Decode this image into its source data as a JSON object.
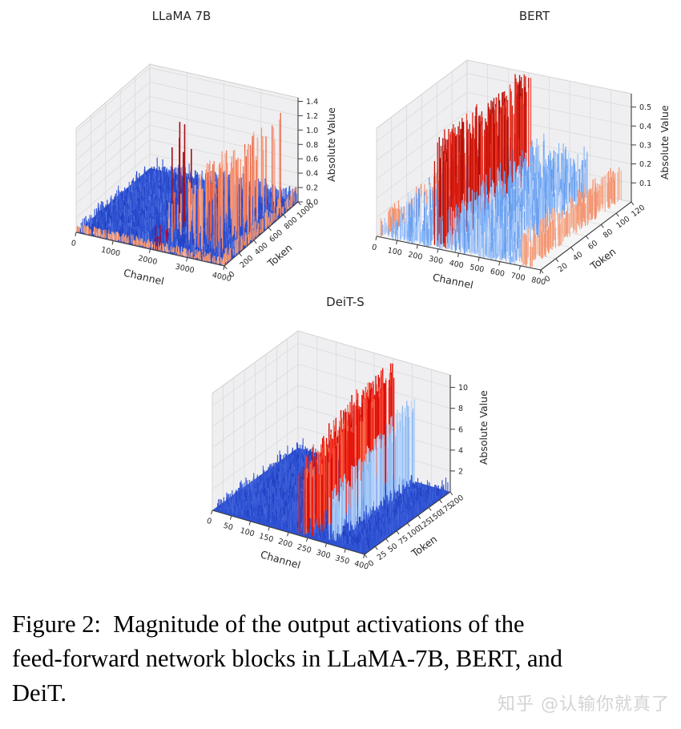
{
  "caption": {
    "lines": [
      "Figure 2:  Magnitude of the output activations of the",
      "feed-forward network blocks in LLaMA-7B, BERT, and",
      "DeiT."
    ]
  },
  "watermark": {
    "text": "知乎 @认输你就真了",
    "color": "#d3d3d3"
  },
  "colors": {
    "pane_wall": "#efeff1",
    "pane_floor": "#f5f5f6",
    "grid": "#d8d8d8",
    "axis": "#3c3c3c",
    "tick_text": "#262626"
  },
  "chart_data": [
    {
      "type": "3d-spike-surface",
      "title": "LLaMA 7B",
      "xlabel": "Channel",
      "ylabel": "Token",
      "zlabel": "Absolute Value",
      "x_ticks": [
        "0",
        "1000",
        "2000",
        "3000",
        "4000"
      ],
      "y_ticks": [
        "0",
        "200",
        "400",
        "600",
        "800",
        "1000"
      ],
      "z_ticks": [
        "0.0",
        "0.2",
        "0.4",
        "0.6",
        "0.8",
        "1.0",
        "1.2",
        "1.4"
      ],
      "x_range": [
        0,
        4000
      ],
      "y_range": [
        0,
        1000
      ],
      "z_range": [
        0,
        1.45
      ],
      "base_fill": "#2e52d3",
      "summary": "Dense low blue activations (<0.15) over all ~4000 channels and 1000 tokens; sparse salmon/red outlier spikes up to ~1.4 concentrated in channels ~2000-4000.",
      "features": [
        {
          "label": "blue-activation-sea-noise",
          "colors": [
            "#2343c8",
            "#3a5cd8",
            "#2c50cf",
            "#4668dd",
            "#1f3fc0",
            "#5577e0"
          ],
          "count": 2400,
          "c": [
            0.01,
            0.99
          ],
          "t": [
            0.03,
            0.97
          ],
          "h": [
            0.01,
            0.16
          ],
          "width": 1.2
        },
        {
          "label": "blue-medium-spikes",
          "colors": [
            "#3a5cd8",
            "#2c50cf"
          ],
          "count": 260,
          "c": [
            0.05,
            0.85
          ],
          "t": [
            0.1,
            0.95
          ],
          "h": [
            0.12,
            0.34
          ],
          "width": 1.1
        },
        {
          "label": "front-edge-salmon-stripe",
          "colors": [
            "#f09a78",
            "#ee8a62",
            "#f6b49b"
          ],
          "count": 280,
          "c": [
            0,
            1
          ],
          "t": [
            0,
            0.03
          ],
          "h": [
            0.02,
            0.12
          ],
          "width": 1.2
        },
        {
          "label": "right-edge-salmon-stripe",
          "colors": [
            "#f09a78",
            "#ee8a62"
          ],
          "count": 130,
          "c": [
            0.97,
            1
          ],
          "t": [
            0,
            1
          ],
          "h": [
            0.03,
            0.22
          ],
          "width": 1.2
        },
        {
          "label": "back-edge-blue-stripe",
          "colors": [
            "#3a5cd8",
            "#5577e0"
          ],
          "count": 140,
          "c": [
            0.45,
            1
          ],
          "t": [
            0.96,
            1
          ],
          "h": [
            0.05,
            0.22
          ],
          "width": 1.2
        },
        {
          "label": "outlier-salmon-spikes",
          "colors": [
            "#f4987a",
            "#ef7c5a",
            "#e96444",
            "#f5ad92",
            "#fa8e6a"
          ],
          "count": 120,
          "c": [
            0.52,
            0.99
          ],
          "t": [
            0.06,
            0.94
          ],
          "h": [
            0.18,
            1.42
          ],
          "ramp": "c",
          "width": 1.3
        },
        {
          "label": "outlier-dark-red-spikes",
          "colors": [
            "#a50f15",
            "#b40426",
            "#c00a0a"
          ],
          "count": 6,
          "c": [
            0.5,
            0.55
          ],
          "t": [
            0.25,
            0.6
          ],
          "h": [
            0.8,
            1.44
          ],
          "width": 1.6
        },
        {
          "label": "front-dark-red-spikes",
          "colors": [
            "#b40426"
          ],
          "count": 8,
          "c": [
            0.48,
            0.62
          ],
          "t": [
            0,
            0.08
          ],
          "h": [
            0.1,
            0.4
          ],
          "width": 1.4
        }
      ]
    },
    {
      "type": "3d-spike-surface",
      "title": "BERT",
      "xlabel": "Channel",
      "ylabel": "Token",
      "zlabel": "Absolute Value",
      "x_ticks": [
        "0",
        "100",
        "200",
        "300",
        "400",
        "500",
        "600",
        "700",
        "800"
      ],
      "y_ticks": [
        "0",
        "20",
        "40",
        "60",
        "80",
        "100",
        "120"
      ],
      "z_ticks": [
        "0.1",
        "0.2",
        "0.3",
        "0.4",
        "0.5"
      ],
      "x_range": [
        0,
        800
      ],
      "y_range": [
        0,
        120
      ],
      "z_range": [
        0,
        0.57
      ],
      "base_fill": null,
      "summary": "Light-blue token-spanning ridges (~0.05-0.25) over channels ~100-600; a tall red outlier wall (~0.45-0.58) near channel ~300; salmon walls (~0.1-0.17) near channels ~0-50 and ~700-750.",
      "features": [
        {
          "label": "light-blue-ridges",
          "colors": [
            "#7aadf6",
            "#9cc2fa",
            "#5e94ea",
            "#b9d4fb",
            "#d7dfef"
          ],
          "count": 1100,
          "c": [
            0.1,
            0.78
          ],
          "t": [
            0,
            1
          ],
          "h": [
            0.04,
            0.21
          ],
          "width": 1.2
        },
        {
          "label": "blue-taller-ridges",
          "colors": [
            "#6aa0f0",
            "#8ab8f8"
          ],
          "count": 240,
          "c": [
            0.42,
            0.76
          ],
          "t": [
            0,
            1
          ],
          "h": [
            0.14,
            0.28
          ],
          "width": 1.2
        },
        {
          "label": "red-outlier-wall",
          "colors": [
            "#df1f14",
            "#c51408",
            "#f04433",
            "#b00d06"
          ],
          "count": 210,
          "c": [
            0.33,
            0.42
          ],
          "t": [
            0.02,
            1
          ],
          "h": [
            0.42,
            0.585
          ],
          "width": 1.3
        },
        {
          "label": "red-wall-lower-fill",
          "colors": [
            "#d41a0f",
            "#e9372a"
          ],
          "count": 90,
          "c": [
            0.34,
            0.41
          ],
          "t": [
            0.1,
            0.9
          ],
          "h": [
            0.15,
            0.42
          ],
          "width": 1.2
        },
        {
          "label": "salmon-wall-right",
          "colors": [
            "#f5a081",
            "#f2906c",
            "#f7b294"
          ],
          "count": 170,
          "c": [
            0.86,
            0.94
          ],
          "t": [
            0,
            1
          ],
          "h": [
            0.1,
            0.17
          ],
          "width": 1.3
        },
        {
          "label": "salmon-ridge-left",
          "colors": [
            "#f5a081",
            "#f2906c"
          ],
          "count": 90,
          "c": [
            0.02,
            0.08
          ],
          "t": [
            0,
            1
          ],
          "h": [
            0.07,
            0.15
          ],
          "width": 1.2
        },
        {
          "label": "front-blue-noise",
          "colors": [
            "#7aadf6",
            "#9cc2fa"
          ],
          "count": 260,
          "c": [
            0.02,
            0.85
          ],
          "t": [
            0,
            0.12
          ],
          "h": [
            0.02,
            0.1
          ],
          "width": 1.1
        }
      ]
    },
    {
      "type": "3d-spike-surface",
      "title": "DeiT-S",
      "xlabel": "Channel",
      "ylabel": "Token",
      "zlabel": "Absolute Value",
      "x_ticks": [
        "0",
        "50",
        "100",
        "150",
        "200",
        "250",
        "300",
        "350",
        "400"
      ],
      "y_ticks": [
        "0",
        "25",
        "50",
        "75",
        "100",
        "125",
        "150",
        "175",
        "200"
      ],
      "z_ticks": [
        "2",
        "4",
        "6",
        "8",
        "10"
      ],
      "x_range": [
        0,
        400
      ],
      "y_range": [
        0,
        200
      ],
      "z_range": [
        0,
        11.2
      ],
      "base_fill": "#2e52d3",
      "summary": "Low blue activations (<1) across ~400 channels and ~200 tokens; a tall red outlier wall (~5-11) near channels ~220-260 and a light-blue spike comb (~3-8) near channel ~300.",
      "features": [
        {
          "label": "blue-activation-sea-noise",
          "colors": [
            "#2343c8",
            "#3a5cd8",
            "#2c50cf",
            "#1f3fbf",
            "#4668dd"
          ],
          "count": 2200,
          "c": [
            0.01,
            0.99
          ],
          "t": [
            0.03,
            0.97
          ],
          "h": [
            0.15,
            1.0
          ],
          "width": 1.2
        },
        {
          "label": "blue-medium-spikes",
          "colors": [
            "#3a5cd8"
          ],
          "count": 200,
          "c": [
            0.03,
            0.5
          ],
          "t": [
            0.05,
            0.95
          ],
          "h": [
            0.8,
            1.6
          ],
          "width": 1.1
        },
        {
          "label": "red-outlier-wall",
          "colors": [
            "#e8130a",
            "#d40d05",
            "#f63b2c",
            "#fb6a4a"
          ],
          "count": 260,
          "c": [
            0.55,
            0.66
          ],
          "t": [
            0.02,
            1
          ],
          "h": [
            5.0,
            11.0
          ],
          "ramp": "t",
          "width": 1.4
        },
        {
          "label": "light-blue-outlier-wall",
          "colors": [
            "#aacdf8",
            "#90bbf3",
            "#c7ddfb"
          ],
          "count": 170,
          "c": [
            0.73,
            0.79
          ],
          "t": [
            0.05,
            1
          ],
          "h": [
            2.5,
            8.5
          ],
          "ramp": "t",
          "width": 1.3
        },
        {
          "label": "right-edge-blue-ridge",
          "colors": [
            "#2c50cf",
            "#3a5cd8"
          ],
          "count": 130,
          "c": [
            0.96,
            1
          ],
          "t": [
            0,
            1
          ],
          "h": [
            0.3,
            1.3
          ],
          "width": 1.2
        }
      ]
    }
  ]
}
